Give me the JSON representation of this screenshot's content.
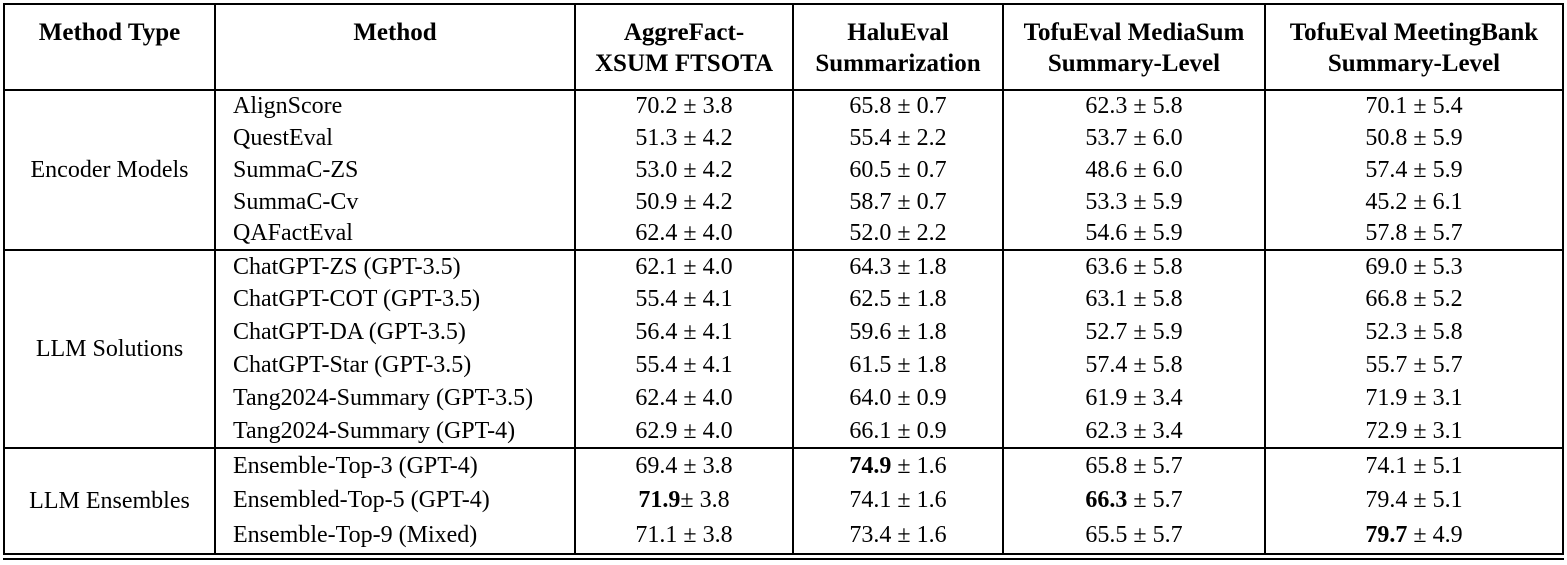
{
  "table": {
    "columns": [
      {
        "line1": "Method Type",
        "line2": ""
      },
      {
        "line1": "Method",
        "line2": ""
      },
      {
        "line1": "AggreFact-",
        "line2": "XSUM FTSOTA"
      },
      {
        "line1": "HaluEval",
        "line2": "Summarization"
      },
      {
        "line1": "TofuEval MediaSum",
        "line2": "Summary-Level"
      },
      {
        "line1": "TofuEval MeetingBank",
        "line2": "Summary-Level"
      }
    ],
    "groups": [
      {
        "label": "Encoder Models",
        "rows": [
          {
            "method": "AlignScore",
            "cells": [
              {
                "t": "70.2 ± 3.8"
              },
              {
                "t": "65.8 ± 0.7"
              },
              {
                "t": "62.3 ± 5.8"
              },
              {
                "t": "70.1 ± 5.4"
              }
            ]
          },
          {
            "method": "QuestEval",
            "cells": [
              {
                "t": "51.3 ± 4.2"
              },
              {
                "t": "55.4 ± 2.2"
              },
              {
                "t": "53.7 ± 6.0"
              },
              {
                "t": "50.8 ± 5.9"
              }
            ]
          },
          {
            "method": "SummaC-ZS",
            "cells": [
              {
                "t": "53.0 ± 4.2"
              },
              {
                "t": "60.5 ± 0.7"
              },
              {
                "t": "48.6 ± 6.0"
              },
              {
                "t": "57.4 ± 5.9"
              }
            ]
          },
          {
            "method": "SummaC-Cv",
            "cells": [
              {
                "t": "50.9 ± 4.2"
              },
              {
                "t": "58.7 ± 0.7"
              },
              {
                "t": "53.3 ± 5.9"
              },
              {
                "t": "45.2 ± 6.1"
              }
            ]
          },
          {
            "method": "QAFactEval",
            "cells": [
              {
                "t": "62.4 ± 4.0"
              },
              {
                "t": "52.0 ± 2.2"
              },
              {
                "t": "54.6 ± 5.9"
              },
              {
                "t": "57.8 ± 5.7"
              }
            ]
          }
        ]
      },
      {
        "label": "LLM Solutions",
        "rows": [
          {
            "method": "ChatGPT-ZS (GPT-3.5)",
            "cells": [
              {
                "t": "62.1 ± 4.0"
              },
              {
                "t": "64.3 ± 1.8"
              },
              {
                "t": "63.6 ± 5.8"
              },
              {
                "t": "69.0 ± 5.3"
              }
            ]
          },
          {
            "method": "ChatGPT-COT (GPT-3.5)",
            "cells": [
              {
                "t": "55.4 ± 4.1"
              },
              {
                "t": "62.5 ± 1.8"
              },
              {
                "t": "63.1 ± 5.8"
              },
              {
                "t": "66.8 ± 5.2"
              }
            ]
          },
          {
            "method": "ChatGPT-DA (GPT-3.5)",
            "cells": [
              {
                "t": "56.4 ± 4.1"
              },
              {
                "t": "59.6 ± 1.8"
              },
              {
                "t": "52.7 ± 5.9"
              },
              {
                "t": "52.3 ± 5.8"
              }
            ]
          },
          {
            "method": "ChatGPT-Star (GPT-3.5)",
            "cells": [
              {
                "t": "55.4 ± 4.1"
              },
              {
                "t": "61.5 ± 1.8"
              },
              {
                "t": "57.4 ± 5.8"
              },
              {
                "t": "55.7 ± 5.7"
              }
            ]
          },
          {
            "method": "Tang2024-Summary (GPT-3.5)",
            "cells": [
              {
                "t": "62.4 ± 4.0"
              },
              {
                "t": "64.0 ± 0.9"
              },
              {
                "t": "61.9 ± 3.4"
              },
              {
                "t": "71.9 ± 3.1"
              }
            ]
          },
          {
            "method": "Tang2024-Summary (GPT-4)",
            "cells": [
              {
                "t": "62.9 ± 4.0"
              },
              {
                "t": "66.1 ± 0.9"
              },
              {
                "t": "62.3 ± 3.4"
              },
              {
                "t": "72.9 ± 3.1"
              }
            ]
          }
        ]
      },
      {
        "label": "LLM Ensembles",
        "rows": [
          {
            "method": "Ensemble-Top-3 (GPT-4)",
            "cells": [
              {
                "t": "69.4 ± 3.8"
              },
              {
                "b": "74.9",
                "t": " ± 1.6"
              },
              {
                "t": "65.8 ± 5.7"
              },
              {
                "t": "74.1 ± 5.1"
              }
            ]
          },
          {
            "method": "Ensembled-Top-5 (GPT-4)",
            "cells": [
              {
                "b": "71.9",
                "t": "± 3.8"
              },
              {
                "t": "74.1 ± 1.6"
              },
              {
                "b": "66.3",
                "t": " ± 5.7"
              },
              {
                "t": "79.4 ± 5.1"
              }
            ]
          },
          {
            "method": "Ensemble-Top-9 (Mixed)",
            "cells": [
              {
                "t": "71.1 ± 3.8"
              },
              {
                "t": "73.4 ± 1.6"
              },
              {
                "t": "65.5 ± 5.7"
              },
              {
                "b": "79.7",
                "t": " ± 4.9"
              }
            ]
          }
        ]
      }
    ]
  }
}
